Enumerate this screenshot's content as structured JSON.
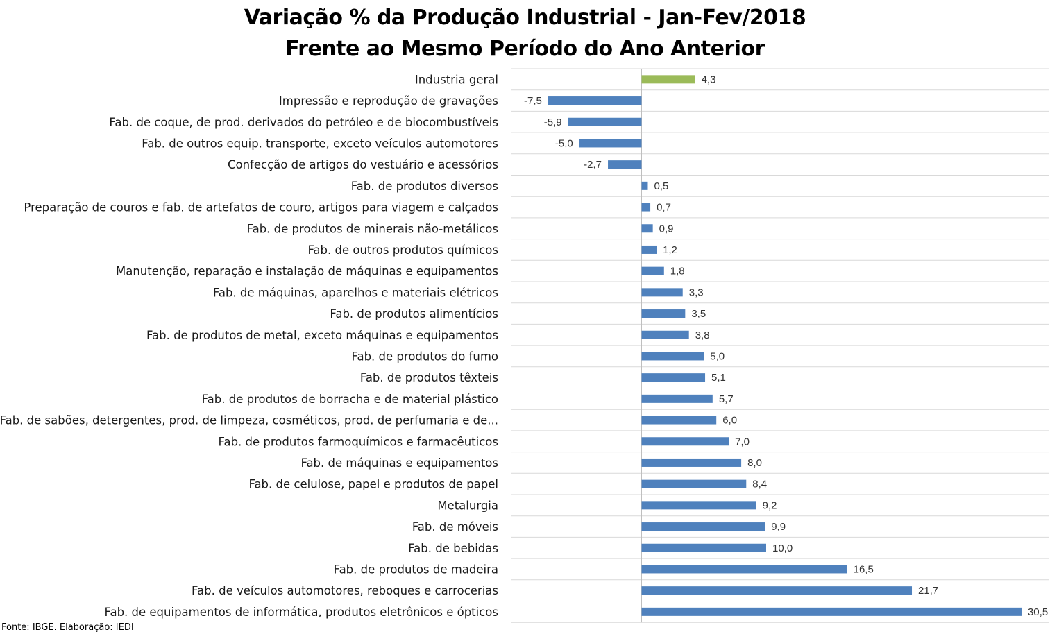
{
  "chart_data": {
    "type": "bar",
    "orientation": "horizontal",
    "title": "Variação % da Produção Industrial - Jan-Fev/2018",
    "subtitle": "Frente ao Mesmo Período do Ano Anterior",
    "xlim": [
      -10,
      32
    ],
    "grid": "horizontal",
    "legend": "none",
    "highlight_color": "#9BBB59",
    "bar_color": "#4F81BD",
    "categories": [
      "Industria geral",
      "Impressão e reprodução de gravações",
      "Fab. de coque, de prod. derivados do petróleo e de biocombustíveis",
      "Fab. de outros equip. transporte, exceto veículos automotores",
      "Confecção de artigos do vestuário e acessórios",
      "Fab. de produtos diversos",
      "Preparação de couros e fab. de artefatos de couro, artigos para viagem e calçados",
      "Fab. de produtos de minerais não-metálicos",
      "Fab. de outros produtos químicos",
      "Manutenção, reparação e instalação de máquinas e equipamentos",
      "Fab. de máquinas, aparelhos e materiais elétricos",
      "Fab. de produtos alimentícios",
      "Fab. de produtos de metal, exceto máquinas e equipamentos",
      "Fab. de produtos do fumo",
      "Fab. de produtos têxteis",
      "Fab. de produtos de borracha e de material plástico",
      "Fab. de sabões, detergentes, prod. de limpeza, cosméticos, prod. de perfumaria e de...",
      "Fab. de produtos farmoquímicos e farmacêuticos",
      "Fab. de máquinas e equipamentos",
      "Fab. de celulose, papel e produtos de papel",
      "Metalurgia",
      "Fab. de móveis",
      "Fab. de bebidas",
      "Fab. de produtos de madeira",
      "Fab. de veículos automotores, reboques e carrocerias",
      "Fab. de equipamentos de informática, produtos eletrônicos e ópticos"
    ],
    "values": [
      4.3,
      -7.5,
      -5.9,
      -5.0,
      -2.7,
      0.5,
      0.7,
      0.9,
      1.2,
      1.8,
      3.3,
      3.5,
      3.8,
      5.0,
      5.1,
      5.7,
      6.0,
      7.0,
      8.0,
      8.4,
      9.2,
      9.9,
      10.0,
      16.5,
      21.7,
      30.5
    ],
    "labels": [
      "4,3",
      "-7,5",
      "-5,9",
      "-5,0",
      "-2,7",
      "0,5",
      "0,7",
      "0,9",
      "1,2",
      "1,8",
      "3,3",
      "3,5",
      "3,8",
      "5,0",
      "5,1",
      "5,7",
      "6,0",
      "7,0",
      "8,0",
      "8,4",
      "9,2",
      "9,9",
      "10,0",
      "16,5",
      "21,7",
      "30,5"
    ]
  },
  "source": "Fonte: IBGE. Elaboração: IEDI"
}
